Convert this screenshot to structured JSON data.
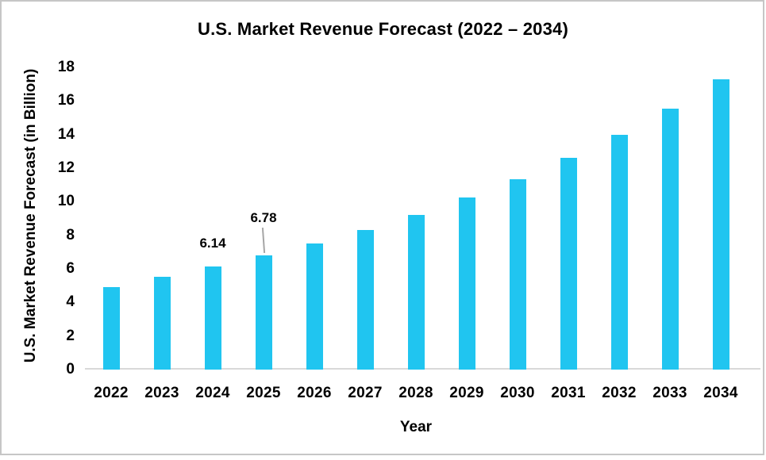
{
  "frame": {
    "border_color": "#c6c6c6",
    "background": "#ffffff"
  },
  "chart_data": {
    "type": "bar",
    "title": "U.S. Market Revenue Forecast (2022 – 2034)",
    "xlabel": "Year",
    "ylabel": "U.S. Market Revenue Forecast (in Billion)",
    "categories": [
      "2022",
      "2023",
      "2024",
      "2025",
      "2026",
      "2027",
      "2028",
      "2029",
      "2030",
      "2031",
      "2032",
      "2033",
      "2034"
    ],
    "values": [
      4.93,
      5.52,
      6.14,
      6.78,
      7.5,
      8.31,
      9.21,
      10.24,
      11.35,
      12.61,
      14.0,
      15.54,
      17.29
    ],
    "ylim": [
      0,
      18
    ],
    "ytick_step": 2,
    "grid": false,
    "legend": false,
    "bar_color": "#20c5f0",
    "axis_line_color": "#d9d9d9",
    "leader_line_color": "#a6a6a6",
    "text_color": "#000000",
    "data_labels": [
      {
        "category": "2024",
        "text": "6.14",
        "gap": 19,
        "leader": false
      },
      {
        "category": "2025",
        "text": "6.78",
        "gap": 37,
        "leader": true
      }
    ]
  }
}
